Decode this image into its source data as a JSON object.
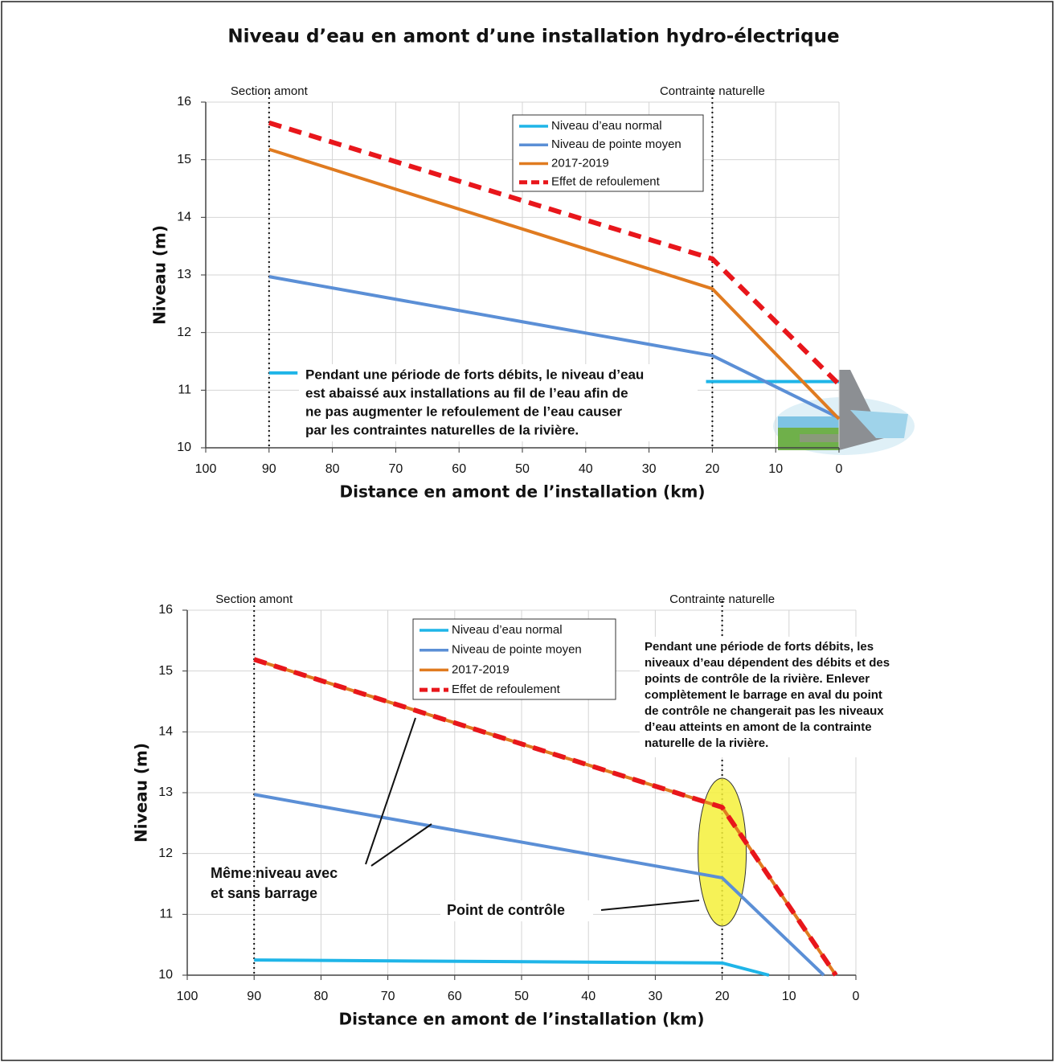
{
  "title": "Niveau d’eau en amont d’une installation hydro-électrique",
  "chart_data": [
    {
      "type": "line",
      "xlabel": "Distance en amont de l’installation (km)",
      "ylabel": "Niveau (m)",
      "xlim": [
        100,
        0
      ],
      "ylim": [
        10,
        16
      ],
      "xticks": [
        100,
        90,
        80,
        70,
        60,
        50,
        40,
        30,
        20,
        10,
        0
      ],
      "yticks": [
        10,
        11,
        12,
        13,
        14,
        15,
        16
      ],
      "grid": true,
      "vlines": [
        {
          "x": 90,
          "label": "Section amont"
        },
        {
          "x": 20,
          "label": "Contrainte naturelle"
        }
      ],
      "series": [
        {
          "name": "Niveau d’eau normal",
          "color": "#1fb5e8",
          "line_style": "solid",
          "x": [
            90,
            85.5,
            null,
            21,
            0
          ],
          "values": [
            11.3,
            11.3,
            null,
            11.15,
            11.15
          ]
        },
        {
          "name": "Niveau de pointe moyen",
          "color": "#5b8fd6",
          "line_style": "solid",
          "x": [
            90,
            20,
            0
          ],
          "values": [
            12.97,
            11.6,
            10.52
          ]
        },
        {
          "name": "2017-2019",
          "color": "#e07b20",
          "line_style": "solid",
          "x": [
            90,
            20,
            0
          ],
          "values": [
            15.18,
            12.76,
            10.5
          ]
        },
        {
          "name": "Effet de refoulement",
          "color": "#e8161b",
          "line_style": "dashed",
          "x": [
            90,
            20,
            0
          ],
          "values": [
            15.64,
            13.28,
            11.1
          ]
        }
      ],
      "annotations": [
        {
          "lines": [
            "Pendant une période de forts débits, le niveau d’eau",
            "est abaissé aux installations au fil de l’eau afin de",
            "ne pas augmenter le refoulement de l’eau causer",
            "par les contraintes naturelles de la rivière."
          ]
        }
      ]
    },
    {
      "type": "line",
      "xlabel": "Distance en amont de l’installation (km)",
      "ylabel": "Niveau (m)",
      "xlim": [
        100,
        0
      ],
      "ylim": [
        10,
        16
      ],
      "xticks": [
        100,
        90,
        80,
        70,
        60,
        50,
        40,
        30,
        20,
        10,
        0
      ],
      "yticks": [
        10,
        11,
        12,
        13,
        14,
        15,
        16
      ],
      "grid": true,
      "vlines": [
        {
          "x": 90,
          "label": "Section amont"
        },
        {
          "x": 20,
          "label": "Contrainte naturelle"
        }
      ],
      "series": [
        {
          "name": "Niveau d’eau normal",
          "color": "#1fb5e8",
          "line_style": "solid",
          "x": [
            90,
            20,
            13
          ],
          "values": [
            10.25,
            10.2,
            10
          ]
        },
        {
          "name": "Niveau de pointe moyen",
          "color": "#5b8fd6",
          "line_style": "solid",
          "x": [
            90,
            20,
            4.8
          ],
          "values": [
            12.97,
            11.6,
            10
          ]
        },
        {
          "name": "2017-2019",
          "color": "#e07b20",
          "line_style": "solid",
          "x": [
            90,
            20,
            3
          ],
          "values": [
            15.19,
            12.76,
            10
          ]
        },
        {
          "name": "Effet de refoulement",
          "color": "#e8161b",
          "line_style": "dashed",
          "x": [
            90,
            20,
            3
          ],
          "values": [
            15.19,
            12.76,
            10
          ]
        }
      ],
      "annotations": [
        {
          "lines": [
            "Pendant une période de forts débits, les",
            "niveaux d’eau dépendent des débits et des",
            "points de contrôle de la rivière.  Enlever",
            "complètement le barrage en aval du point",
            "de contrôle ne changerait pas les niveaux",
            "d’eau atteints en amont de la contrainte",
            "naturelle de la rivière."
          ]
        },
        {
          "lines": [
            "Même niveau avec",
            "et sans barrage"
          ]
        },
        {
          "lines": [
            "Point de contrôle"
          ]
        }
      ]
    }
  ]
}
